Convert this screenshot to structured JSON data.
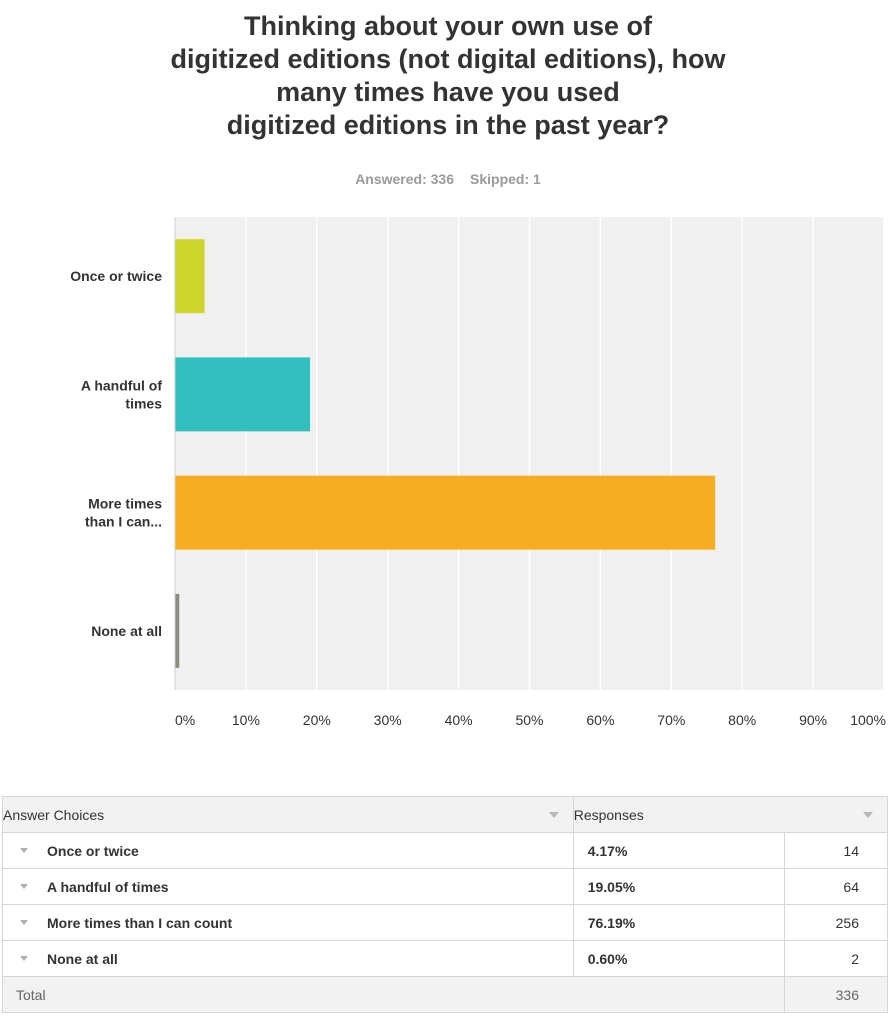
{
  "title_lines": [
    "Thinking about your own use of",
    "digitized editions (not digital editions), how",
    "many times have you used",
    "digitized editions in the past year?"
  ],
  "stats": {
    "answered": "Answered: 336",
    "skipped": "Skipped: 1"
  },
  "chart_data": {
    "type": "bar",
    "orientation": "horizontal",
    "categories": [
      "Once or twice",
      "A handful of times",
      "More times than I can...",
      "None at all"
    ],
    "category_label_lines": [
      [
        "Once or twice"
      ],
      [
        "A handful of",
        "times"
      ],
      [
        "More times",
        "than I can..."
      ],
      [
        "None at all"
      ]
    ],
    "values": [
      4.17,
      19.05,
      76.19,
      0.6
    ],
    "colors": [
      "#cdd62b",
      "#33bebe",
      "#f5ae21",
      "#8c8c7e"
    ],
    "xlim": [
      0,
      100
    ],
    "x_ticks": [
      "0%",
      "10%",
      "20%",
      "30%",
      "40%",
      "50%",
      "60%",
      "70%",
      "80%",
      "90%",
      "100%"
    ],
    "grid": true,
    "title": "",
    "xlabel": "",
    "ylabel": ""
  },
  "table": {
    "headers": {
      "choices": "Answer Choices",
      "responses": "Responses"
    },
    "rows": [
      {
        "choice": "Once or twice",
        "percent": "4.17%",
        "count": "14"
      },
      {
        "choice": "A handful of times",
        "percent": "19.05%",
        "count": "64"
      },
      {
        "choice": "More times than I can count",
        "percent": "76.19%",
        "count": "256"
      },
      {
        "choice": "None at all",
        "percent": "0.60%",
        "count": "2"
      }
    ],
    "total_label": "Total",
    "total_count": "336"
  }
}
